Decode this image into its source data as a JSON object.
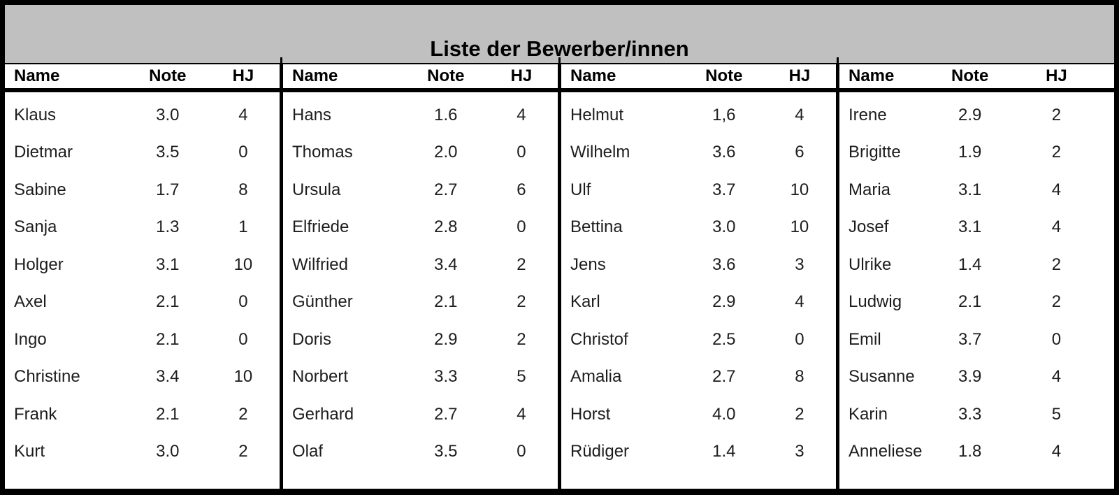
{
  "title": "Liste der Bewerber/innen",
  "header": {
    "name": "Name",
    "note": "Note",
    "hj": "HJ"
  },
  "colors": {
    "title_bg": "#c0c0c0",
    "border": "#000000",
    "text": "#1d1d1d"
  },
  "groups": [
    {
      "rows": [
        {
          "name": "Klaus",
          "note": "3.0",
          "hj": "4"
        },
        {
          "name": "Dietmar",
          "note": "3.5",
          "hj": "0"
        },
        {
          "name": "Sabine",
          "note": "1.7",
          "hj": "8"
        },
        {
          "name": "Sanja",
          "note": "1.3",
          "hj": "1"
        },
        {
          "name": "Holger",
          "note": "3.1",
          "hj": "10"
        },
        {
          "name": "Axel",
          "note": "2.1",
          "hj": "0"
        },
        {
          "name": "Ingo",
          "note": "2.1",
          "hj": "0"
        },
        {
          "name": "Christine",
          "note": "3.4",
          "hj": "10"
        },
        {
          "name": "Frank",
          "note": "2.1",
          "hj": "2"
        },
        {
          "name": "Kurt",
          "note": "3.0",
          "hj": "2"
        }
      ]
    },
    {
      "rows": [
        {
          "name": "Hans",
          "note": "1.6",
          "hj": "4"
        },
        {
          "name": "Thomas",
          "note": "2.0",
          "hj": "0"
        },
        {
          "name": "Ursula",
          "note": "2.7",
          "hj": "6"
        },
        {
          "name": "Elfriede",
          "note": "2.8",
          "hj": "0"
        },
        {
          "name": "Wilfried",
          "note": "3.4",
          "hj": "2"
        },
        {
          "name": "Günther",
          "note": "2.1",
          "hj": "2"
        },
        {
          "name": "Doris",
          "note": "2.9",
          "hj": "2"
        },
        {
          "name": "Norbert",
          "note": "3.3",
          "hj": "5"
        },
        {
          "name": "Gerhard",
          "note": "2.7",
          "hj": "4"
        },
        {
          "name": "Olaf",
          "note": "3.5",
          "hj": "0"
        }
      ]
    },
    {
      "rows": [
        {
          "name": "Helmut",
          "note": "1,6",
          "hj": "4"
        },
        {
          "name": "Wilhelm",
          "note": "3.6",
          "hj": "6"
        },
        {
          "name": "Ulf",
          "note": "3.7",
          "hj": "10"
        },
        {
          "name": "Bettina",
          "note": "3.0",
          "hj": "10"
        },
        {
          "name": "Jens",
          "note": "3.6",
          "hj": "3"
        },
        {
          "name": "Karl",
          "note": "2.9",
          "hj": "4"
        },
        {
          "name": "Christof",
          "note": "2.5",
          "hj": "0"
        },
        {
          "name": "Amalia",
          "note": "2.7",
          "hj": "8"
        },
        {
          "name": "Horst",
          "note": "4.0",
          "hj": "2"
        },
        {
          "name": "Rüdiger",
          "note": "1.4",
          "hj": "3"
        }
      ]
    },
    {
      "rows": [
        {
          "name": "Irene",
          "note": "2.9",
          "hj": "2"
        },
        {
          "name": "Brigitte",
          "note": "1.9",
          "hj": "2"
        },
        {
          "name": "Maria",
          "note": "3.1",
          "hj": "4"
        },
        {
          "name": "Josef",
          "note": "3.1",
          "hj": "4"
        },
        {
          "name": "Ulrike",
          "note": "1.4",
          "hj": "2"
        },
        {
          "name": "Ludwig",
          "note": "2.1",
          "hj": "2"
        },
        {
          "name": "Emil",
          "note": "3.7",
          "hj": "0"
        },
        {
          "name": "Susanne",
          "note": "3.9",
          "hj": "4"
        },
        {
          "name": "Karin",
          "note": "3.3",
          "hj": "5"
        },
        {
          "name": "Anneliese",
          "note": "1.8",
          "hj": "4"
        }
      ]
    }
  ]
}
